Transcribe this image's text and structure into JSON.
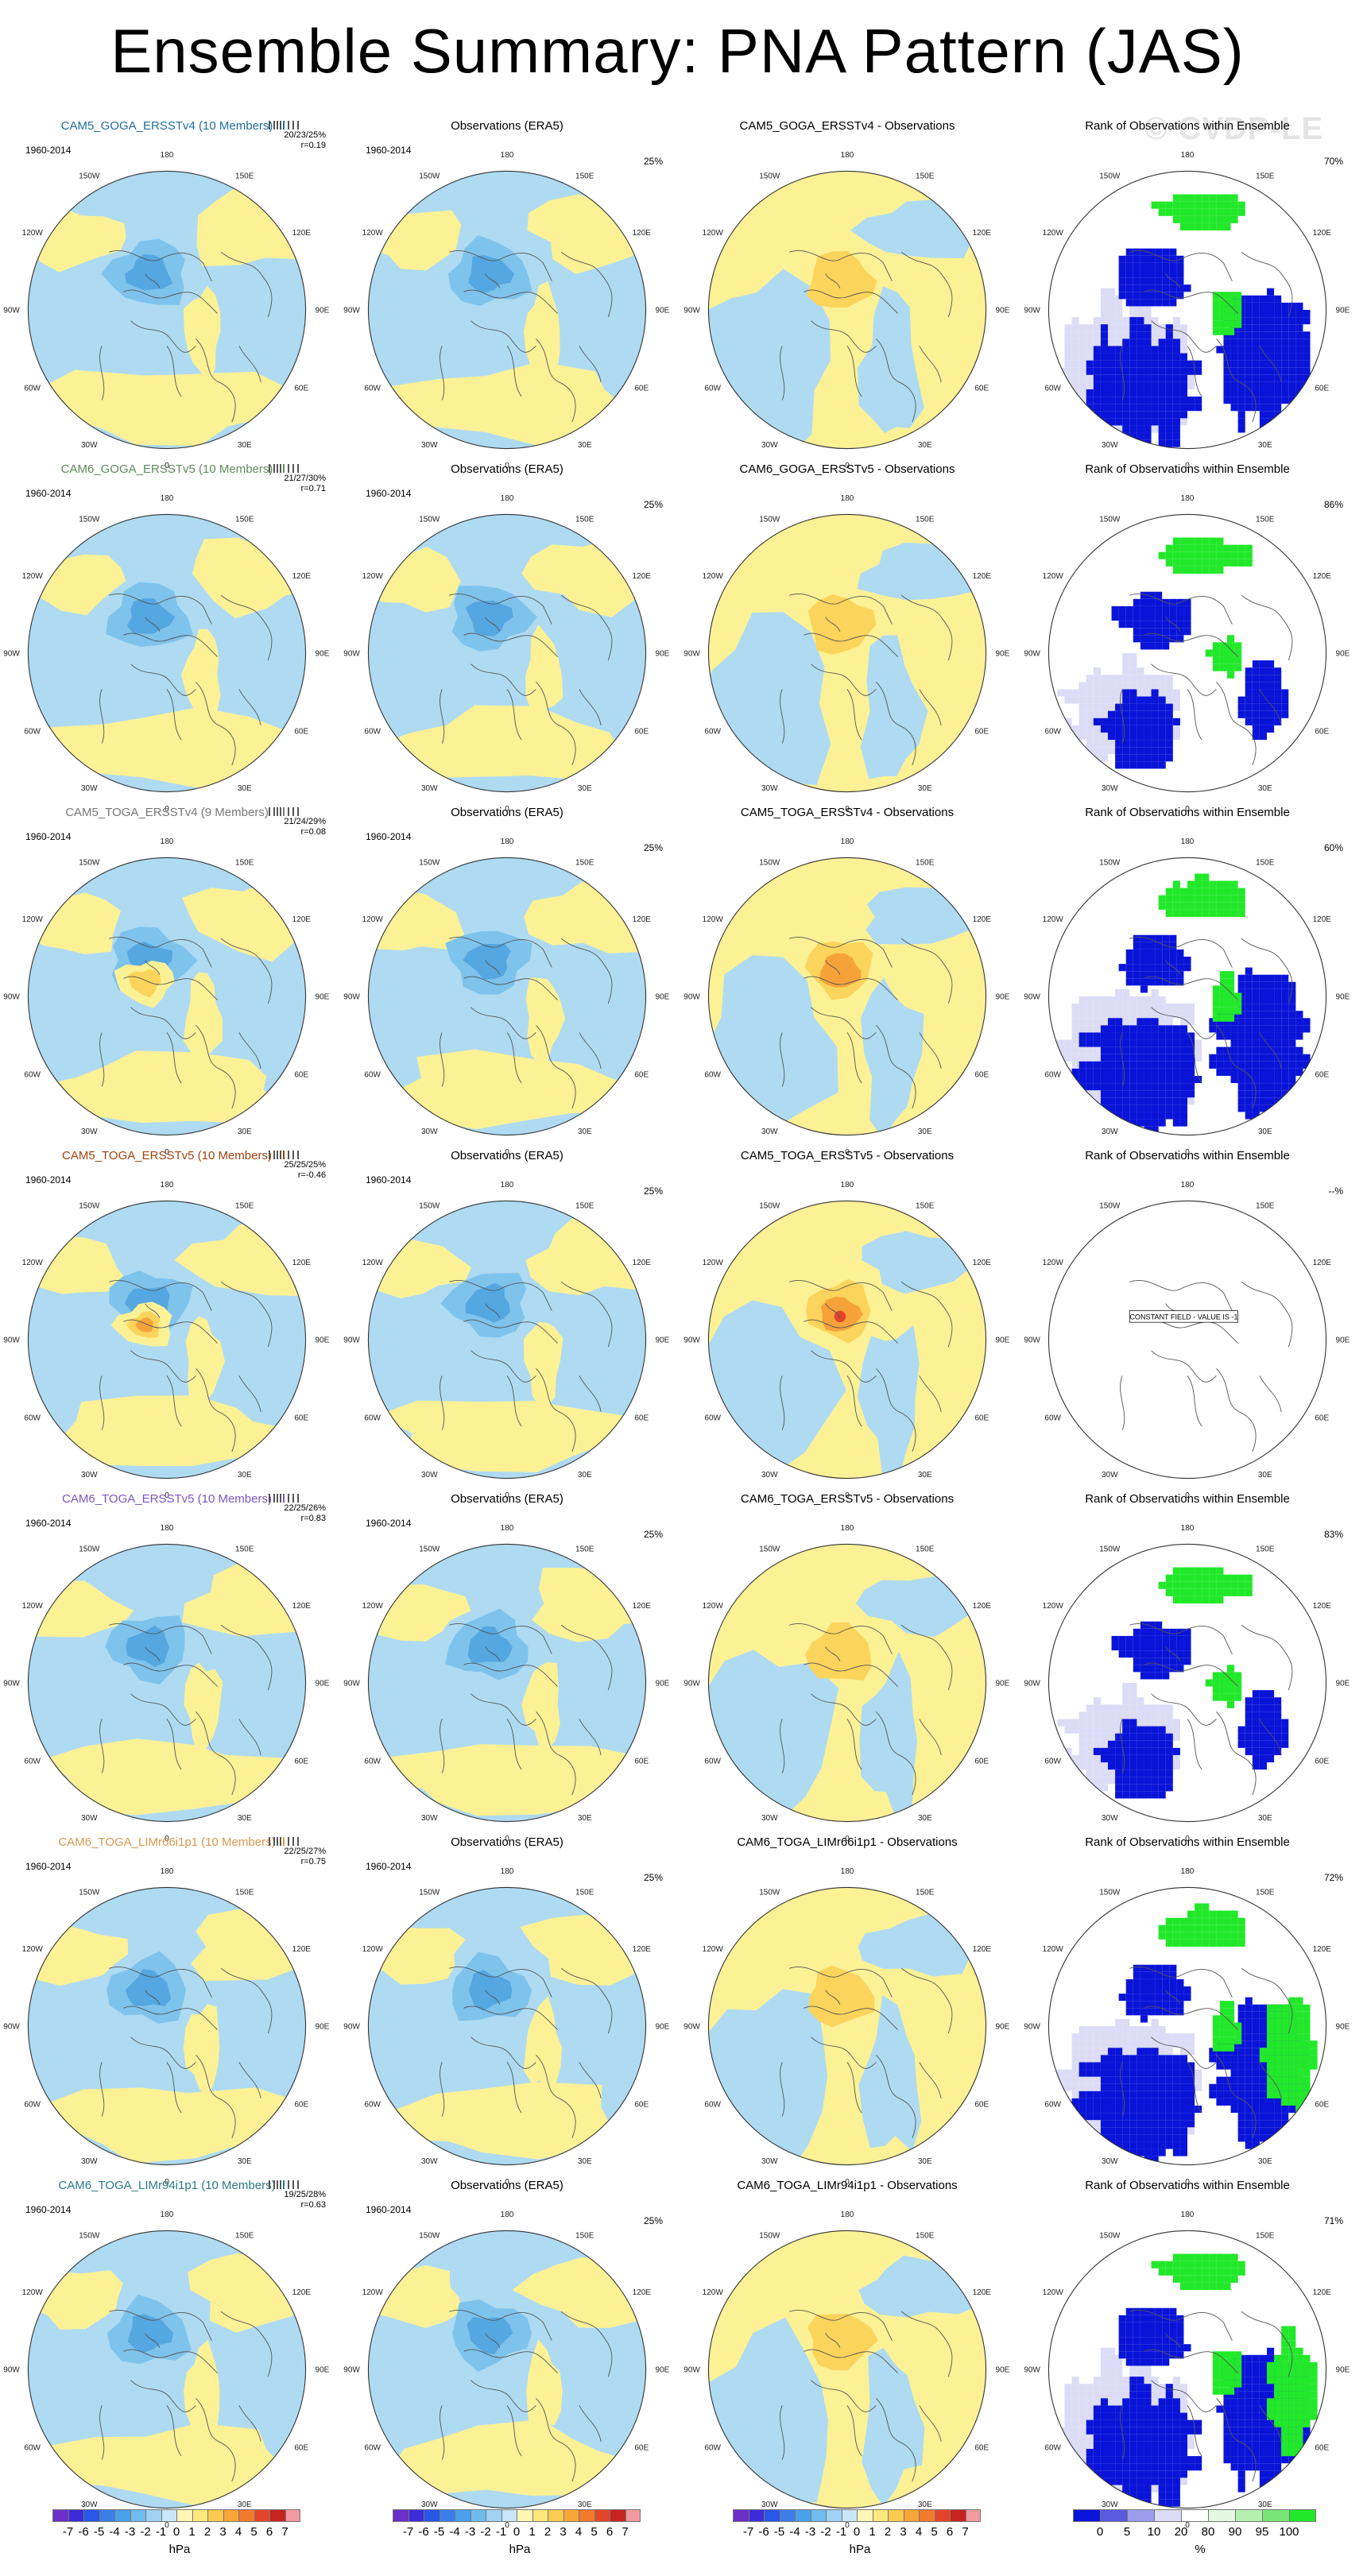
{
  "title": "Ensemble Summary: PNA Pattern (JAS)",
  "watermark": "© CVDP-LE",
  "lon_labels": [
    "180",
    "150E",
    "120E",
    "90E",
    "60E",
    "30E",
    "0",
    "30W",
    "60W",
    "90W",
    "120W",
    "150W"
  ],
  "colors": {
    "light_blue": "#aedbf2",
    "mid_blue": "#7ec3ec",
    "blue": "#54a7e0",
    "yellow": "#fdf196",
    "orange_light": "#fbd45c",
    "orange": "#f6a23a",
    "red": "#e04428",
    "rank_blue": "#0a14d8",
    "rank_lightblue": "#dcdcf6",
    "rank_green": "#22e82a",
    "rank_lightgreen": "#e5f8e2",
    "coast": "#555555"
  },
  "rows": [
    {
      "ens_title": "CAM5_GOGA_ERSSTv4 (10 Members)",
      "ens_color": "#1e6f99",
      "stats": "20/23/25%",
      "r": "r=0.19",
      "diff_title": "CAM5_GOGA_ERSSTv4 - Observations",
      "rank_pct": "70%"
    },
    {
      "ens_title": "CAM6_GOGA_ERSSTv5 (10 Members)",
      "ens_color": "#5e8a5a",
      "stats": "21/27/30%",
      "r": "r=0.71",
      "diff_title": "CAM6_GOGA_ERSSTv5 - Observations",
      "rank_pct": "86%"
    },
    {
      "ens_title": "CAM5_TOGA_ERSSTv4 (9 Members)",
      "ens_color": "#777777",
      "stats": "21/24/29%",
      "r": "r=0.08",
      "diff_title": "CAM5_TOGA_ERSSTv4 - Observations",
      "rank_pct": "60%"
    },
    {
      "ens_title": "CAM5_TOGA_ERSSTv5 (10 Members)",
      "ens_color": "#a0410d",
      "stats": "25/25/25%",
      "r": "r=-0.46",
      "diff_title": "CAM5_TOGA_ERSSTv5 - Observations",
      "rank_pct": "--%",
      "constant_field": "CONSTANT FIELD - VALUE IS -1"
    },
    {
      "ens_title": "CAM6_TOGA_ERSSTv5 (10 Members)",
      "ens_color": "#7b55c4",
      "stats": "22/25/26%",
      "r": "r=0.83",
      "diff_title": "CAM6_TOGA_ERSSTv5 - Observations",
      "rank_pct": "83%"
    },
    {
      "ens_title": "CAM6_TOGA_LIMr66i1p1 (10 Members)",
      "ens_color": "#d79a4e",
      "stats": "22/25/27%",
      "r": "r=0.75",
      "diff_title": "CAM6_TOGA_LIMr66i1p1 - Observations",
      "rank_pct": "72%"
    },
    {
      "ens_title": "CAM6_TOGA_LIMr94i1p1 (10 Members)",
      "ens_color": "#2a7b86",
      "stats": "19/25/28%",
      "r": "r=0.63",
      "diff_title": "CAM6_TOGA_LIMr94i1p1 - Observations",
      "rank_pct": "71%"
    }
  ],
  "period": "1960-2014",
  "obs_title": "Observations (ERA5)",
  "obs_pct": "25%",
  "rank_title": "Rank of Observations within Ensemble",
  "colorbars": {
    "hpa": {
      "unit": "hPa",
      "labels": [
        "-7",
        "-6",
        "-5",
        "-4",
        "-3",
        "-2",
        "-1",
        "0",
        "1",
        "2",
        "3",
        "4",
        "5",
        "6",
        "7"
      ],
      "colors": [
        "#6a2fc8",
        "#3d2bd8",
        "#2856e6",
        "#3b7ee8",
        "#4aa0ea",
        "#6fbcef",
        "#9fd2f3",
        "#c9e7f8",
        "#fef6b4",
        "#fde87d",
        "#fbcb4f",
        "#f7a637",
        "#f17a2c",
        "#e4452a",
        "#c72420",
        "#f19aa0"
      ]
    },
    "pct": {
      "unit": "%",
      "labels": [
        "0",
        "5",
        "10",
        "20",
        "80",
        "90",
        "95",
        "100"
      ],
      "colors": [
        "#0a14d8",
        "#5a5ae0",
        "#9c9cec",
        "#dcdcf6",
        "#ffffff",
        "#e5f8e2",
        "#b5f0b0",
        "#7ae67a",
        "#22e82a"
      ]
    }
  }
}
